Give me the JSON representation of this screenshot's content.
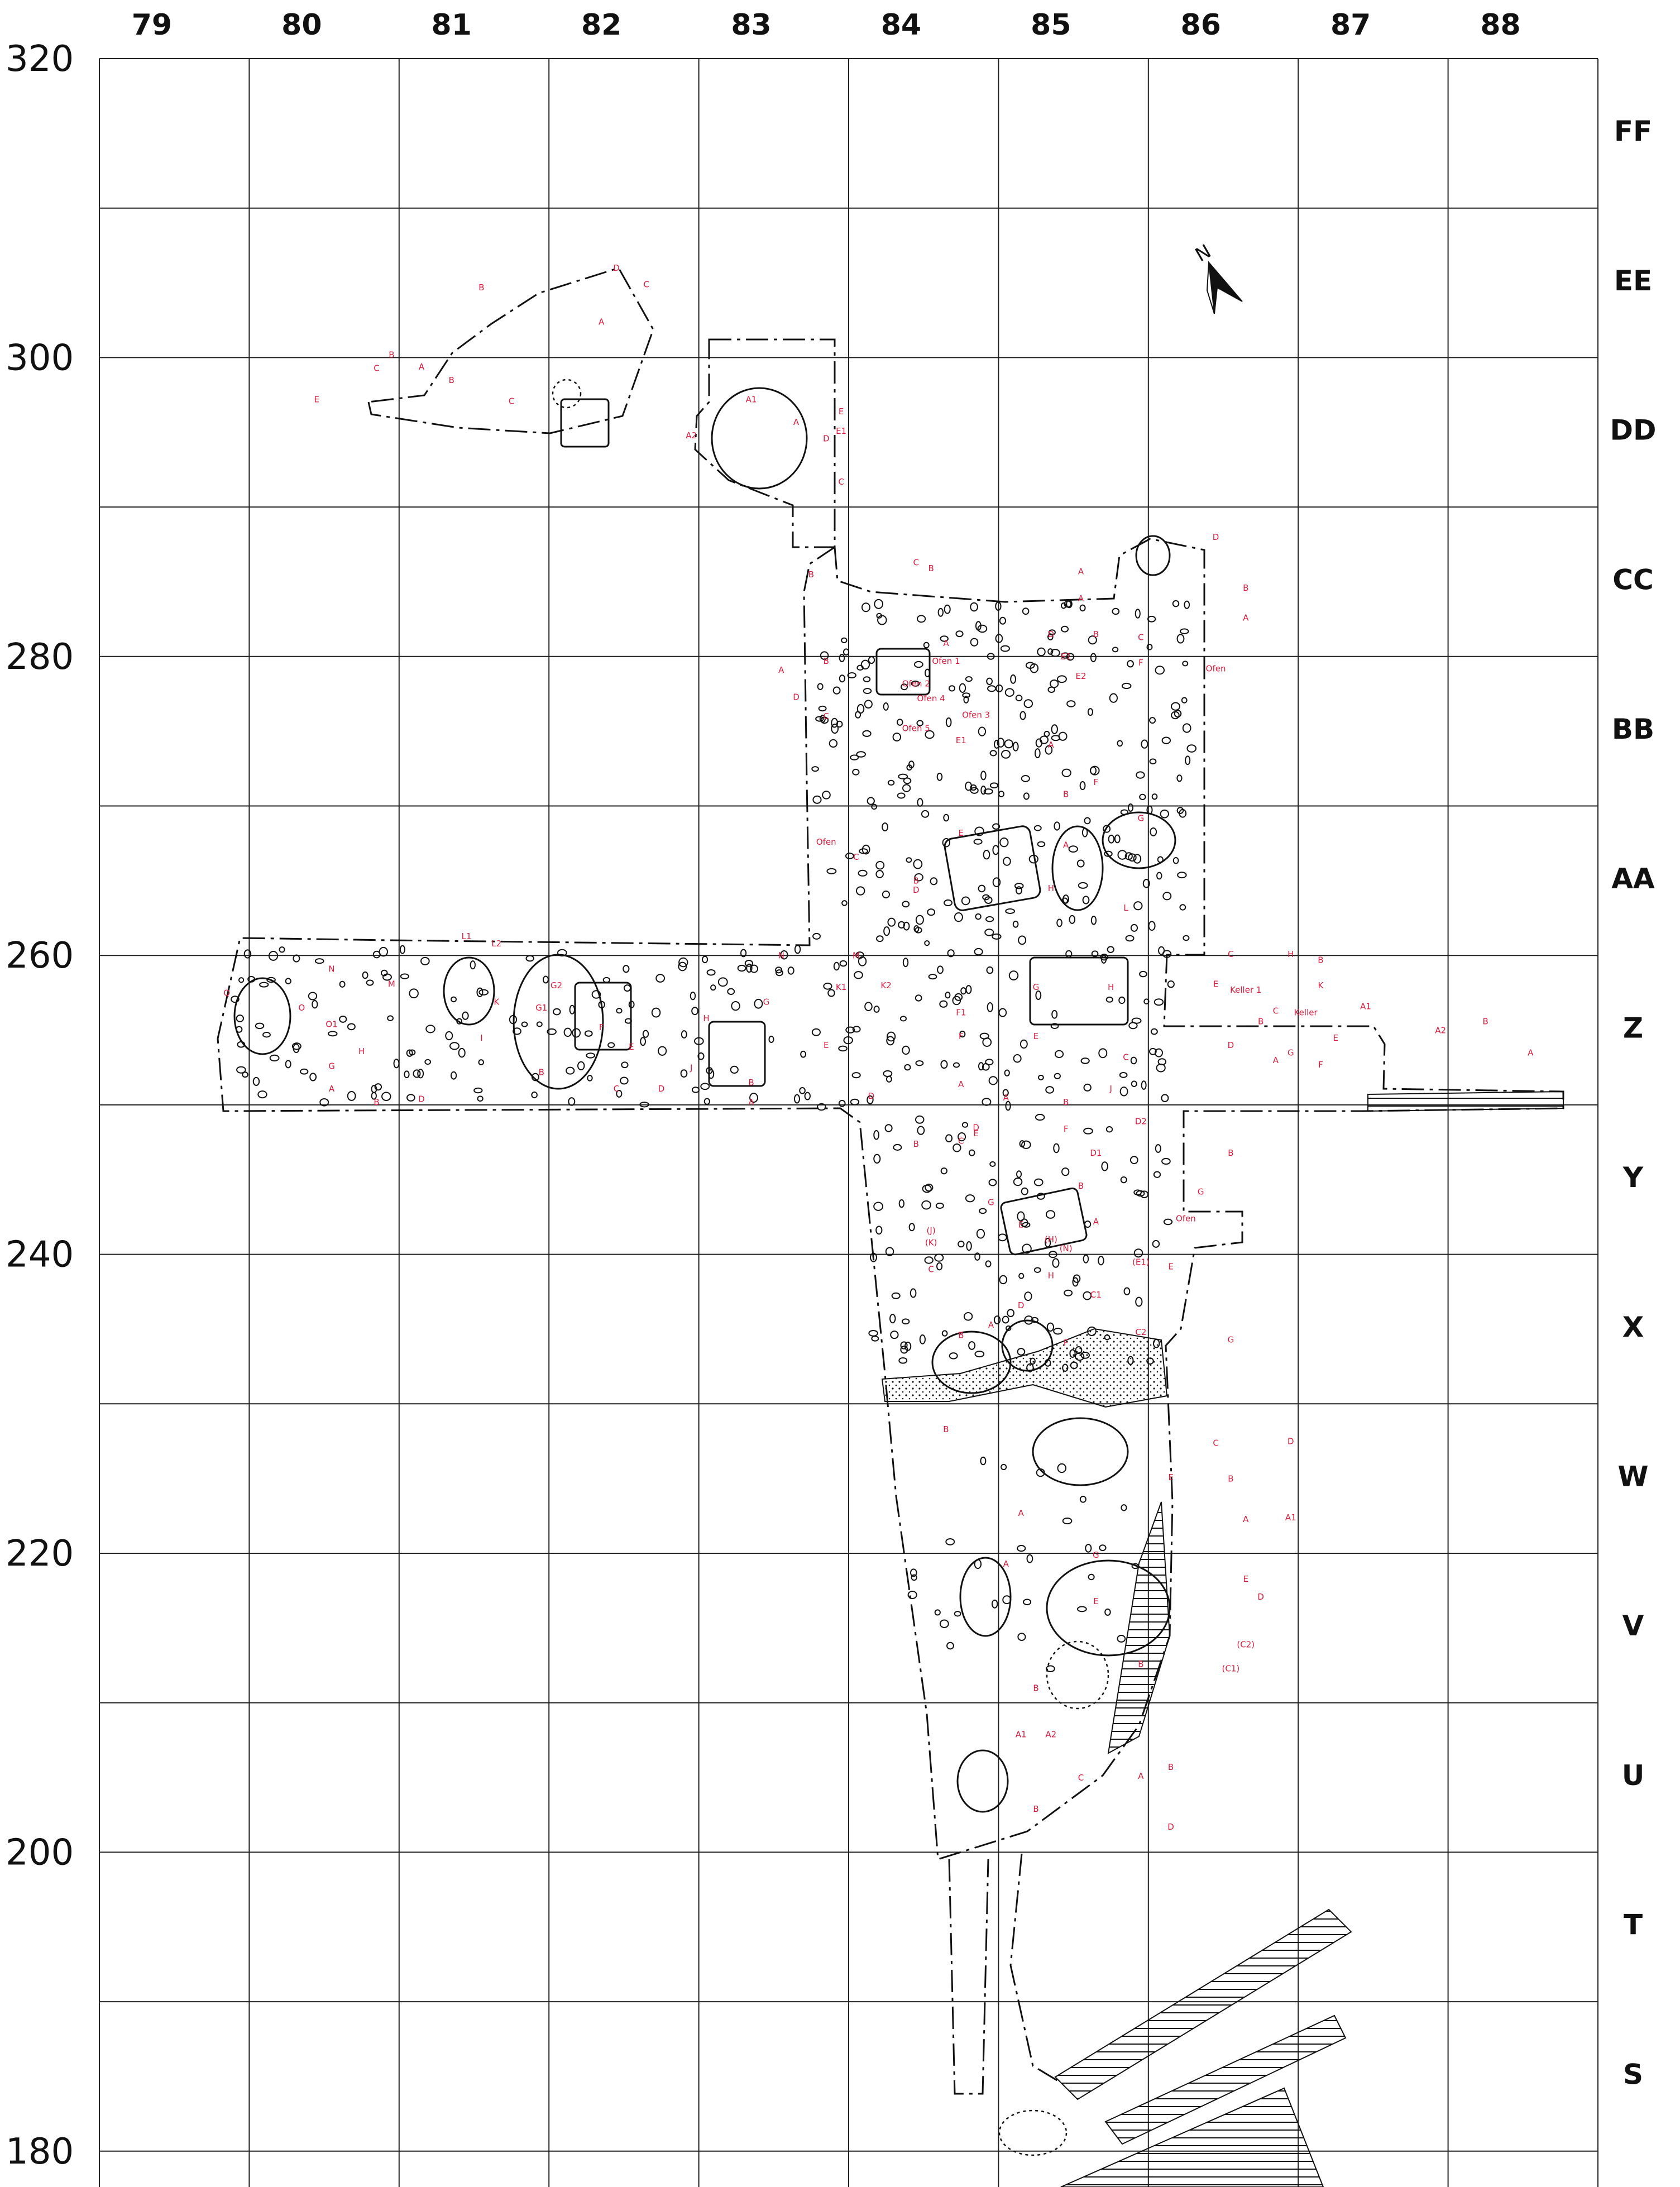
{
  "columns": [
    "79",
    "80",
    "81",
    "82",
    "83",
    "84",
    "85",
    "86",
    "87",
    "88"
  ],
  "rows": [
    "FF",
    "EE",
    "DD",
    "CC",
    "BB",
    "AA",
    "Z",
    "Y",
    "X",
    "W",
    "V",
    "U",
    "T",
    "S"
  ],
  "y_axis": [
    "320",
    "300",
    "280",
    "260",
    "240",
    "220",
    "200",
    "180"
  ],
  "north": {
    "label": "N",
    "icon": "north-arrow-icon"
  },
  "colors": {
    "lines": "#111111",
    "feature_labels": "#d81b3c",
    "background": "#ffffff"
  },
  "feature_labels": [
    {
      "text": "A",
      "col": 82.0,
      "row": 302.2
    },
    {
      "text": "B",
      "col": 81.2,
      "row": 304.5
    },
    {
      "text": "C",
      "col": 82.3,
      "row": 304.7
    },
    {
      "text": "D",
      "col": 82.1,
      "row": 305.8
    },
    {
      "text": "A",
      "col": 80.8,
      "row": 299.2
    },
    {
      "text": "B",
      "col": 80.6,
      "row": 300.0
    },
    {
      "text": "C",
      "col": 80.5,
      "row": 299.1
    },
    {
      "text": "E",
      "col": 80.1,
      "row": 297.0
    },
    {
      "text": "B",
      "col": 81.0,
      "row": 298.3
    },
    {
      "text": "C",
      "col": 81.4,
      "row": 296.9
    },
    {
      "text": "A1",
      "col": 83.0,
      "row": 297.0
    },
    {
      "text": "A2",
      "col": 82.6,
      "row": 294.6
    },
    {
      "text": "A",
      "col": 83.3,
      "row": 295.5
    },
    {
      "text": "E",
      "col": 83.6,
      "row": 296.2
    },
    {
      "text": "D",
      "col": 83.5,
      "row": 294.4
    },
    {
      "text": "E1",
      "col": 83.6,
      "row": 294.9
    },
    {
      "text": "C",
      "col": 83.6,
      "row": 291.5
    },
    {
      "text": "A",
      "col": 85.2,
      "row": 285.5
    },
    {
      "text": "B",
      "col": 84.2,
      "row": 285.7
    },
    {
      "text": "C",
      "col": 84.1,
      "row": 286.1
    },
    {
      "text": "D",
      "col": 86.1,
      "row": 287.8
    },
    {
      "text": "B",
      "col": 86.3,
      "row": 284.4
    },
    {
      "text": "A",
      "col": 86.3,
      "row": 282.4
    },
    {
      "text": "A",
      "col": 84.3,
      "row": 280.7
    },
    {
      "text": "Ofen 1",
      "col": 84.3,
      "row": 279.5
    },
    {
      "text": "Ofen 2",
      "col": 84.1,
      "row": 278.0
    },
    {
      "text": "Ofen 4",
      "col": 84.2,
      "row": 277.0
    },
    {
      "text": "Ofen 3",
      "col": 84.5,
      "row": 275.9
    },
    {
      "text": "Ofen 5",
      "col": 84.1,
      "row": 275.0
    },
    {
      "text": "E1",
      "col": 84.4,
      "row": 274.2
    },
    {
      "text": "C",
      "col": 83.5,
      "row": 275.8
    },
    {
      "text": "D",
      "col": 83.3,
      "row": 277.1
    },
    {
      "text": "B",
      "col": 83.5,
      "row": 279.5
    },
    {
      "text": "A",
      "col": 83.2,
      "row": 278.9
    },
    {
      "text": "B",
      "col": 83.4,
      "row": 285.3
    },
    {
      "text": "A",
      "col": 85.2,
      "row": 283.7
    },
    {
      "text": "C",
      "col": 85.6,
      "row": 281.1
    },
    {
      "text": "B",
      "col": 85.3,
      "row": 281.3
    },
    {
      "text": "D",
      "col": 85.0,
      "row": 281.3
    },
    {
      "text": "E1",
      "col": 85.1,
      "row": 279.8
    },
    {
      "text": "E2",
      "col": 85.2,
      "row": 278.5
    },
    {
      "text": "F",
      "col": 85.6,
      "row": 279.4
    },
    {
      "text": "Ofen",
      "col": 86.1,
      "row": 279.0
    },
    {
      "text": "A",
      "col": 85.0,
      "row": 273.9
    },
    {
      "text": "B",
      "col": 85.1,
      "row": 270.6
    },
    {
      "text": "E",
      "col": 84.4,
      "row": 268.0
    },
    {
      "text": "A",
      "col": 85.1,
      "row": 267.2
    },
    {
      "text": "F",
      "col": 85.3,
      "row": 271.4
    },
    {
      "text": "G",
      "col": 85.6,
      "row": 269.0
    },
    {
      "text": "Ofen",
      "col": 83.5,
      "row": 267.4
    },
    {
      "text": "C",
      "col": 83.7,
      "row": 266.4
    },
    {
      "text": "D",
      "col": 84.1,
      "row": 264.2
    },
    {
      "text": "B",
      "col": 84.1,
      "row": 264.8
    },
    {
      "text": "H",
      "col": 85.0,
      "row": 264.3
    },
    {
      "text": "L",
      "col": 85.5,
      "row": 263.0
    },
    {
      "text": "N",
      "col": 80.2,
      "row": 258.9
    },
    {
      "text": "O",
      "col": 80.0,
      "row": 256.3
    },
    {
      "text": "Q",
      "col": 79.5,
      "row": 257.3
    },
    {
      "text": "O1",
      "col": 80.2,
      "row": 255.2
    },
    {
      "text": "G",
      "col": 80.2,
      "row": 252.4
    },
    {
      "text": "H",
      "col": 80.4,
      "row": 253.4
    },
    {
      "text": "A",
      "col": 80.2,
      "row": 250.9
    },
    {
      "text": "B",
      "col": 80.5,
      "row": 250.0
    },
    {
      "text": "D",
      "col": 80.8,
      "row": 250.2
    },
    {
      "text": "M",
      "col": 80.6,
      "row": 257.9
    },
    {
      "text": "K",
      "col": 81.3,
      "row": 256.7
    },
    {
      "text": "L1",
      "col": 81.1,
      "row": 261.1
    },
    {
      "text": "L2",
      "col": 81.3,
      "row": 260.6
    },
    {
      "text": "I",
      "col": 81.2,
      "row": 254.3
    },
    {
      "text": "G2",
      "col": 81.7,
      "row": 257.8
    },
    {
      "text": "G1",
      "col": 81.6,
      "row": 256.3
    },
    {
      "text": "F",
      "col": 82.0,
      "row": 255.0
    },
    {
      "text": "E",
      "col": 82.2,
      "row": 253.7
    },
    {
      "text": "B",
      "col": 81.6,
      "row": 252.0
    },
    {
      "text": "C",
      "col": 82.1,
      "row": 250.9
    },
    {
      "text": "D",
      "col": 82.4,
      "row": 250.9
    },
    {
      "text": "H",
      "col": 82.7,
      "row": 255.6
    },
    {
      "text": "G",
      "col": 83.1,
      "row": 256.7
    },
    {
      "text": "J",
      "col": 82.6,
      "row": 252.3
    },
    {
      "text": "N",
      "col": 83.2,
      "row": 259.8
    },
    {
      "text": "M",
      "col": 83.7,
      "row": 259.8
    },
    {
      "text": "K1",
      "col": 83.6,
      "row": 257.7
    },
    {
      "text": "K2",
      "col": 83.9,
      "row": 257.8
    },
    {
      "text": "E",
      "col": 83.5,
      "row": 253.8
    },
    {
      "text": "B",
      "col": 83.0,
      "row": 251.3
    },
    {
      "text": "A",
      "col": 83.0,
      "row": 250.0
    },
    {
      "text": "D",
      "col": 83.8,
      "row": 250.4
    },
    {
      "text": "F1",
      "col": 84.4,
      "row": 256.0
    },
    {
      "text": "F",
      "col": 84.4,
      "row": 254.4
    },
    {
      "text": "E",
      "col": 84.9,
      "row": 254.4
    },
    {
      "text": "A",
      "col": 84.7,
      "row": 250.3
    },
    {
      "text": "B",
      "col": 85.1,
      "row": 250.0
    },
    {
      "text": "G",
      "col": 84.9,
      "row": 257.7
    },
    {
      "text": "H",
      "col": 85.4,
      "row": 257.7
    },
    {
      "text": "C",
      "col": 85.5,
      "row": 253.0
    },
    {
      "text": "E",
      "col": 86.1,
      "row": 257.9
    },
    {
      "text": "B",
      "col": 86.4,
      "row": 255.4
    },
    {
      "text": "A",
      "col": 86.5,
      "row": 252.8
    },
    {
      "text": "C",
      "col": 86.5,
      "row": 256.1
    },
    {
      "text": "Keller 1",
      "col": 86.3,
      "row": 257.5
    },
    {
      "text": "C",
      "col": 86.2,
      "row": 259.9
    },
    {
      "text": "H",
      "col": 86.6,
      "row": 259.9
    },
    {
      "text": "B",
      "col": 86.8,
      "row": 259.5
    },
    {
      "text": "K",
      "col": 86.8,
      "row": 257.8
    },
    {
      "text": "Keller",
      "col": 86.7,
      "row": 256.0
    },
    {
      "text": "D",
      "col": 86.2,
      "row": 253.8
    },
    {
      "text": "G",
      "col": 86.6,
      "row": 253.3
    },
    {
      "text": "F",
      "col": 86.8,
      "row": 252.5
    },
    {
      "text": "E",
      "col": 86.9,
      "row": 254.3
    },
    {
      "text": "A1",
      "col": 87.1,
      "row": 256.4
    },
    {
      "text": "A2",
      "col": 87.6,
      "row": 254.8
    },
    {
      "text": "B",
      "col": 87.9,
      "row": 255.4
    },
    {
      "text": "A",
      "col": 88.2,
      "row": 253.3
    },
    {
      "text": "A",
      "col": 84.4,
      "row": 251.2
    },
    {
      "text": "B",
      "col": 84.1,
      "row": 247.2
    },
    {
      "text": "C",
      "col": 84.4,
      "row": 247.4
    },
    {
      "text": "D",
      "col": 84.5,
      "row": 248.3
    },
    {
      "text": "E",
      "col": 84.5,
      "row": 247.9
    },
    {
      "text": "G",
      "col": 84.6,
      "row": 243.3
    },
    {
      "text": "F",
      "col": 85.1,
      "row": 248.2
    },
    {
      "text": "D1",
      "col": 85.3,
      "row": 246.6
    },
    {
      "text": "D2",
      "col": 85.6,
      "row": 248.7
    },
    {
      "text": "J",
      "col": 85.4,
      "row": 250.9
    },
    {
      "text": "A",
      "col": 85.3,
      "row": 242.0
    },
    {
      "text": "B",
      "col": 85.2,
      "row": 244.4
    },
    {
      "text": "B",
      "col": 86.2,
      "row": 246.6
    },
    {
      "text": "G",
      "col": 86.0,
      "row": 244.0
    },
    {
      "text": "Ofen",
      "col": 85.9,
      "row": 242.2
    },
    {
      "text": "(J)",
      "col": 84.2,
      "row": 241.4
    },
    {
      "text": "(K)",
      "col": 84.2,
      "row": 240.6
    },
    {
      "text": "C",
      "col": 84.2,
      "row": 238.8
    },
    {
      "text": "E",
      "col": 84.8,
      "row": 241.8
    },
    {
      "text": "(H)",
      "col": 85.0,
      "row": 240.8
    },
    {
      "text": "(N)",
      "col": 85.1,
      "row": 240.2
    },
    {
      "text": "H",
      "col": 85.0,
      "row": 238.4
    },
    {
      "text": "(E1)",
      "col": 85.6,
      "row": 239.3
    },
    {
      "text": "E",
      "col": 85.8,
      "row": 239.0
    },
    {
      "text": "C1",
      "col": 85.3,
      "row": 237.1
    },
    {
      "text": "D",
      "col": 84.8,
      "row": 236.4
    },
    {
      "text": "A",
      "col": 84.6,
      "row": 235.1
    },
    {
      "text": "B",
      "col": 84.4,
      "row": 234.4
    },
    {
      "text": "C2",
      "col": 85.6,
      "row": 234.6
    },
    {
      "text": "F",
      "col": 85.1,
      "row": 233.9
    },
    {
      "text": "G",
      "col": 86.2,
      "row": 234.1
    },
    {
      "text": "B",
      "col": 84.3,
      "row": 228.1
    },
    {
      "text": "C",
      "col": 86.1,
      "row": 227.2
    },
    {
      "text": "D",
      "col": 86.6,
      "row": 227.3
    },
    {
      "text": "E",
      "col": 85.8,
      "row": 224.9
    },
    {
      "text": "B",
      "col": 86.2,
      "row": 224.8
    },
    {
      "text": "A",
      "col": 86.3,
      "row": 222.1
    },
    {
      "text": "A1",
      "col": 86.6,
      "row": 222.2
    },
    {
      "text": "A",
      "col": 84.8,
      "row": 222.5
    },
    {
      "text": "A",
      "col": 84.7,
      "row": 219.1
    },
    {
      "text": "G",
      "col": 85.3,
      "row": 219.7
    },
    {
      "text": "E",
      "col": 85.3,
      "row": 216.6
    },
    {
      "text": "E",
      "col": 86.3,
      "row": 218.1
    },
    {
      "text": "D",
      "col": 86.4,
      "row": 216.9
    },
    {
      "text": "(C2)",
      "col": 86.3,
      "row": 213.7
    },
    {
      "text": "(C1)",
      "col": 86.2,
      "row": 212.1
    },
    {
      "text": "B",
      "col": 85.6,
      "row": 212.4
    },
    {
      "text": "B",
      "col": 84.9,
      "row": 210.8
    },
    {
      "text": "A1",
      "col": 84.8,
      "row": 207.7
    },
    {
      "text": "A2",
      "col": 85.0,
      "row": 207.7
    },
    {
      "text": "C",
      "col": 85.2,
      "row": 204.8
    },
    {
      "text": "B",
      "col": 84.9,
      "row": 202.7
    },
    {
      "text": "A",
      "col": 85.6,
      "row": 204.9
    },
    {
      "text": "B",
      "col": 85.8,
      "row": 205.5
    },
    {
      "text": "D",
      "col": 85.8,
      "row": 201.5
    }
  ]
}
